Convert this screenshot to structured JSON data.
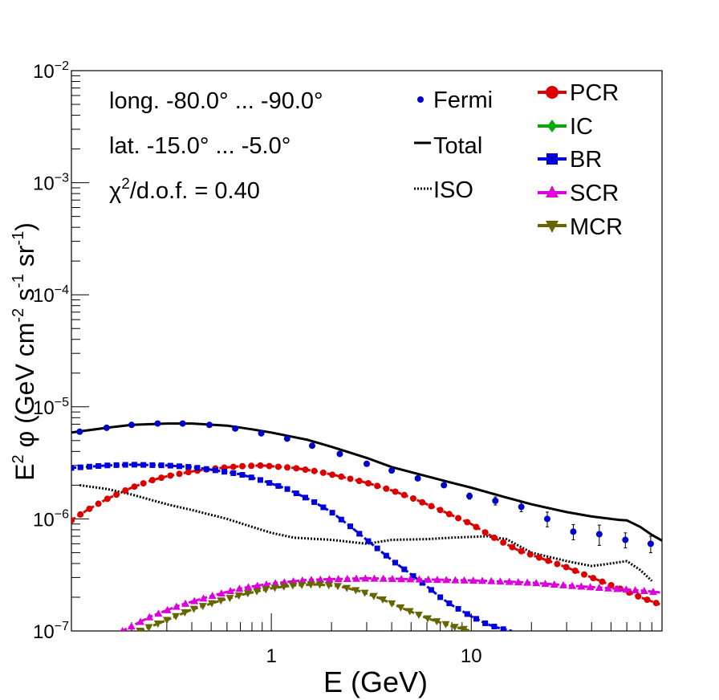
{
  "chart_data": {
    "type": "line",
    "title": "",
    "xlabel": "E (GeV)",
    "ylabel_main": "E",
    "ylabel_sup1": "2",
    "ylabel_phi": " φ (GeV cm",
    "ylabel_sup2": "-2",
    "ylabel_mid": " s",
    "ylabel_sup3": "-1",
    "ylabel_sr": " sr",
    "ylabel_sup4": "-1",
    "ylabel_end": ")",
    "xscale": "log",
    "yscale": "log",
    "xlim": [
      0.1,
      90
    ],
    "ylim": [
      1e-07,
      0.01
    ],
    "x_tick_labels": [
      {
        "value": 1,
        "label": "1"
      },
      {
        "value": 10,
        "label": "10"
      }
    ],
    "y_tick_labels": [
      {
        "value": 1e-07,
        "label": "10",
        "sup": "−7"
      },
      {
        "value": 1e-06,
        "label": "10",
        "sup": "−6"
      },
      {
        "value": 1e-05,
        "label": "10",
        "sup": "−5"
      },
      {
        "value": 0.0001,
        "label": "10",
        "sup": "−4"
      },
      {
        "value": 0.001,
        "label": "10",
        "sup": "−3"
      },
      {
        "value": 0.01,
        "label": "10",
        "sup": "−2"
      }
    ],
    "annotations": {
      "longitude": "long. -80.0° ... -90.0°",
      "latitude": "lat. -15.0° ... -5.0°",
      "chi2_main": "χ",
      "chi2_sup": "2",
      "chi2_rest": "/d.o.f. = 0.40"
    },
    "legend_left": [
      {
        "name": "Fermi",
        "style": "point",
        "color": "#0000cc"
      },
      {
        "name": "Total",
        "style": "solid",
        "color": "#000000"
      },
      {
        "name": "ISO",
        "style": "dotted",
        "color": "#000000"
      }
    ],
    "legend_right": [
      {
        "name": "PCR",
        "marker": "circle",
        "color": "#dd0000"
      },
      {
        "name": "IC",
        "marker": "diamond",
        "color": "#00aa00"
      },
      {
        "name": "BR",
        "marker": "square",
        "color": "#0000dd"
      },
      {
        "name": "SCR",
        "marker": "triangle-up",
        "color": "#dd00dd"
      },
      {
        "name": "MCR",
        "marker": "triangle-down",
        "color": "#666600"
      }
    ],
    "fermi": {
      "x": [
        0.11,
        0.15,
        0.2,
        0.27,
        0.36,
        0.49,
        0.66,
        0.89,
        1.2,
        1.6,
        2.2,
        3.0,
        4.0,
        5.4,
        7.3,
        9.8,
        13.2,
        17.8,
        24,
        32.4,
        43.7,
        59,
        79
      ],
      "y": [
        6e-06,
        6.5e-06,
        6.9e-06,
        7.1e-06,
        7.1e-06,
        6.9e-06,
        6.4e-06,
        5.8e-06,
        5.2e-06,
        4.5e-06,
        3.8e-06,
        3.1e-06,
        2.7e-06,
        2.3e-06,
        2e-06,
        1.6e-06,
        1.45e-06,
        1.28e-06,
        1e-06,
        7.7e-07,
        7.3e-07,
        6.5e-07,
        6e-07
      ],
      "err": [
        2e-07,
        2e-07,
        2e-07,
        2e-07,
        2e-07,
        2e-07,
        2e-07,
        1.5e-07,
        1.5e-07,
        1e-07,
        1e-07,
        8e-08,
        7e-08,
        6e-08,
        6e-08,
        1e-07,
        1.2e-07,
        1.2e-07,
        1.5e-07,
        1.2e-07,
        1.5e-07,
        1e-07,
        1e-07
      ]
    },
    "series": [
      {
        "name": "Total",
        "color": "#000000",
        "dash": "",
        "width": 3,
        "marker": "none",
        "x": [
          0.1,
          0.15,
          0.2,
          0.3,
          0.4,
          0.6,
          0.8,
          1.0,
          1.5,
          2.0,
          3.0,
          4.0,
          6.0,
          8.0,
          10,
          15,
          20,
          30,
          40,
          50,
          55,
          60,
          70,
          80,
          90
        ],
        "y": [
          5.9e-06,
          6.5e-06,
          6.9e-06,
          7.1e-06,
          7.1e-06,
          6.8e-06,
          6.3e-06,
          5.9e-06,
          5.1e-06,
          4.4e-06,
          3.5e-06,
          2.9e-06,
          2.4e-06,
          2.1e-06,
          1.9e-06,
          1.55e-06,
          1.35e-06,
          1.15e-06,
          1.05e-06,
          1e-06,
          9.8e-07,
          9.7e-07,
          8.5e-07,
          7.2e-07,
          6.4e-07
        ]
      },
      {
        "name": "ISO",
        "color": "#000000",
        "dash": "2,2",
        "width": 3,
        "marker": "none",
        "x": [
          0.11,
          0.15,
          0.2,
          0.3,
          0.4,
          0.6,
          0.8,
          1.0,
          1.3,
          2.0,
          3.0,
          4.0,
          6.0,
          8.0,
          12,
          15,
          20,
          30,
          40,
          45,
          60,
          70,
          80
        ],
        "y": [
          2e-06,
          1.85e-06,
          1.65e-06,
          1.35e-06,
          1.2e-06,
          1e-06,
          8.5e-07,
          7.5e-07,
          6.8e-07,
          6.5e-07,
          6e-07,
          6.5e-07,
          6.6e-07,
          6.8e-07,
          7e-07,
          6.6e-07,
          5e-07,
          4.2e-07,
          3.8e-07,
          3.9e-07,
          4.2e-07,
          3.5e-07,
          2.8e-07
        ]
      },
      {
        "name": "PCR",
        "color": "#dd0000",
        "dash": "6,3",
        "width": 3,
        "marker": "circle",
        "x": [
          0.1,
          0.12,
          0.15,
          0.2,
          0.25,
          0.3,
          0.4,
          0.5,
          0.7,
          0.9,
          1.0,
          1.3,
          1.7,
          2.2,
          3.0,
          4.0,
          5.0,
          7.0,
          10,
          13,
          17,
          22,
          30,
          40,
          55,
          70,
          90
        ],
        "y": [
          9.7e-07,
          1.2e-06,
          1.5e-06,
          1.9e-06,
          2.2e-06,
          2.4e-06,
          2.65e-06,
          2.8e-06,
          2.95e-06,
          3e-06,
          2.95e-06,
          2.85e-06,
          2.65e-06,
          2.4e-06,
          2.1e-06,
          1.8e-06,
          1.55e-06,
          1.2e-06,
          9e-07,
          6.8e-07,
          5.3e-07,
          4.5e-07,
          3.7e-07,
          3e-07,
          2.4e-07,
          2e-07,
          1.7e-07
        ]
      },
      {
        "name": "BR",
        "color": "#0000dd",
        "dash": "6,3",
        "width": 3,
        "marker": "square",
        "x": [
          0.1,
          0.15,
          0.2,
          0.3,
          0.4,
          0.5,
          0.7,
          0.9,
          1.2,
          1.6,
          2.0,
          2.5,
          3.0,
          4.0,
          5.0,
          6.0,
          7.0,
          8.0,
          10,
          12,
          14,
          16
        ],
        "y": [
          2.85e-06,
          3e-06,
          3.05e-06,
          3e-06,
          2.9e-06,
          2.75e-06,
          2.5e-06,
          2.2e-06,
          1.85e-06,
          1.45e-06,
          1.15e-06,
          8.5e-07,
          6.5e-07,
          4.3e-07,
          3.2e-07,
          2.5e-07,
          2e-07,
          1.7e-07,
          1.35e-07,
          1.15e-07,
          1.05e-07,
          1e-07
        ]
      },
      {
        "name": "SCR",
        "color": "#dd00dd",
        "dash": "6,3",
        "width": 3,
        "marker": "triangle-up",
        "x": [
          0.18,
          0.25,
          0.35,
          0.5,
          0.7,
          1.0,
          1.5,
          2.0,
          3.0,
          5.0,
          8.0,
          12,
          20,
          30,
          50,
          70,
          90
        ],
        "y": [
          1e-07,
          1.35e-07,
          1.7e-07,
          2.05e-07,
          2.4e-07,
          2.65e-07,
          2.85e-07,
          2.9e-07,
          2.95e-07,
          2.9e-07,
          2.85e-07,
          2.8e-07,
          2.7e-07,
          2.55e-07,
          2.4e-07,
          2.3e-07,
          2.2e-07
        ]
      },
      {
        "name": "MCR",
        "color": "#666600",
        "dash": "6,3",
        "width": 3,
        "marker": "triangle-down",
        "x": [
          0.22,
          0.3,
          0.4,
          0.55,
          0.75,
          1.0,
          1.3,
          1.7,
          2.2,
          2.8,
          3.5,
          4.5,
          6.0,
          8.0,
          10
        ],
        "y": [
          1e-07,
          1.25e-07,
          1.55e-07,
          1.85e-07,
          2.15e-07,
          2.4e-07,
          2.55e-07,
          2.6e-07,
          2.5e-07,
          2.25e-07,
          1.95e-07,
          1.6e-07,
          1.3e-07,
          1.1e-07,
          1e-07
        ]
      }
    ]
  }
}
